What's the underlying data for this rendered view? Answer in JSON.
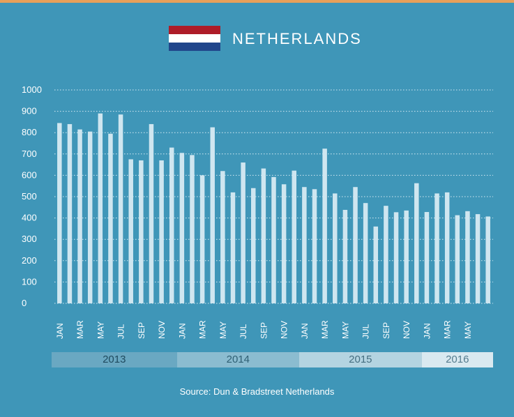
{
  "header": {
    "title": "NETHERLANDS",
    "flag_colors": [
      "#ae1c28",
      "#ffffff",
      "#21468b"
    ]
  },
  "chart_data": {
    "type": "bar",
    "title": "NETHERLANDS",
    "xlabel": "",
    "ylabel": "",
    "ylim": [
      0,
      1000
    ],
    "yticks": [
      0,
      100,
      200,
      300,
      400,
      500,
      600,
      700,
      800,
      900,
      1000
    ],
    "grid": true,
    "bar_color": "#cfe6f0",
    "categories": [
      "2013-01",
      "2013-02",
      "2013-03",
      "2013-04",
      "2013-05",
      "2013-06",
      "2013-07",
      "2013-08",
      "2013-09",
      "2013-10",
      "2013-11",
      "2013-12",
      "2014-01",
      "2014-02",
      "2014-03",
      "2014-04",
      "2014-05",
      "2014-06",
      "2014-07",
      "2014-08",
      "2014-09",
      "2014-10",
      "2014-11",
      "2014-12",
      "2015-01",
      "2015-02",
      "2015-03",
      "2015-04",
      "2015-05",
      "2015-06",
      "2015-07",
      "2015-08",
      "2015-09",
      "2015-10",
      "2015-11",
      "2015-12",
      "2016-01",
      "2016-02",
      "2016-03",
      "2016-04",
      "2016-05",
      "2016-06",
      "2016-07"
    ],
    "values": [
      845,
      840,
      815,
      805,
      890,
      795,
      885,
      675,
      670,
      840,
      670,
      730,
      705,
      695,
      600,
      825,
      620,
      520,
      660,
      540,
      632,
      592,
      558,
      622,
      545,
      535,
      725,
      515,
      438,
      545,
      470,
      360,
      457,
      427,
      435,
      563,
      428,
      515,
      520,
      413,
      432,
      418,
      407
    ],
    "tick_labels": [
      "JAN",
      "MAR",
      "MAY",
      "JUL",
      "SEP",
      "NOV",
      "JAN",
      "MAR",
      "MAY",
      "JUL",
      "SEP",
      "NOV",
      "JAN",
      "MAR",
      "MAY",
      "JUL",
      "SEP",
      "NOV",
      "JAN",
      "MAR",
      "MAY"
    ],
    "years": [
      {
        "label": "2013",
        "bg": "#6aa8c2",
        "fg": "#1f4a5e"
      },
      {
        "label": "2014",
        "bg": "#8bbcd0",
        "fg": "#2f5f73"
      },
      {
        "label": "2015",
        "bg": "#b4d4e1",
        "fg": "#456e80"
      },
      {
        "label": "2016",
        "bg": "#d9e9f0",
        "fg": "#557c8e"
      }
    ]
  },
  "footer": {
    "source": "Source: Dun & Bradstreet Netherlands"
  }
}
